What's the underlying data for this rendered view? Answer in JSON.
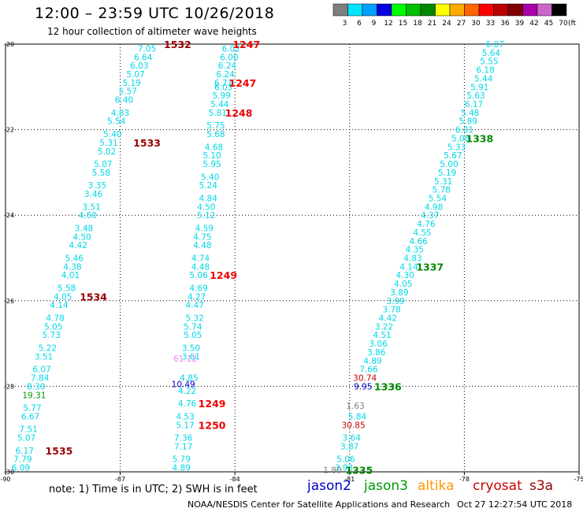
{
  "header": {
    "title": "12:00 – 23:59 UTC 10/26/2018",
    "subtitle": "12 hour collection of altimeter wave heights"
  },
  "colorbar": {
    "colors": [
      "#7f7f7f",
      "#00e5ff",
      "#00a0ff",
      "#0000e0",
      "#00ff00",
      "#00c000",
      "#008800",
      "#ffff00",
      "#ffaa00",
      "#ff6600",
      "#ff0000",
      "#bb0000",
      "#800000",
      "#aa00aa",
      "#cc66cc",
      "#000000"
    ],
    "labels": [
      "3",
      "6",
      "9",
      "12",
      "15",
      "18",
      "21",
      "24",
      "27",
      "30",
      "33",
      "36",
      "39",
      "42",
      "45",
      "70"
    ],
    "unit": "(ft)"
  },
  "map": {
    "lat_ticks": [
      "-20",
      "-22",
      "-24",
      "-26",
      "-28",
      "-30"
    ],
    "lon_ticks": [
      "-90",
      "-87",
      "-84",
      "-81",
      "-78",
      "-75"
    ],
    "tracks": [
      {
        "name": "track-west",
        "color": "#00d8e8",
        "values": [
          {
            "lat": -20.1,
            "lon": -86.3,
            "v": "7.05"
          },
          {
            "lat": -20.3,
            "lon": -86.4,
            "v": "6.64"
          },
          {
            "lat": -20.5,
            "lon": -86.5,
            "v": "6.03"
          },
          {
            "lat": -20.7,
            "lon": -86.6,
            "v": "5.07"
          },
          {
            "lat": -20.9,
            "lon": -86.7,
            "v": "5.19"
          },
          {
            "lat": -21.1,
            "lon": -86.8,
            "v": "5.57"
          },
          {
            "lat": -21.3,
            "lon": -86.9,
            "v": "6.40"
          },
          {
            "lat": -21.6,
            "lon": -87.0,
            "v": "4.83"
          },
          {
            "lat": -21.8,
            "lon": -87.1,
            "v": "5.54"
          },
          {
            "lat": -22.1,
            "lon": -87.2,
            "v": "5.40"
          },
          {
            "lat": -22.3,
            "lon": -87.3,
            "v": "5.31"
          },
          {
            "lat": -22.5,
            "lon": -87.35,
            "v": "5.02"
          },
          {
            "lat": -22.8,
            "lon": -87.45,
            "v": "5.07"
          },
          {
            "lat": -23.0,
            "lon": -87.5,
            "v": "5.58"
          },
          {
            "lat": -23.3,
            "lon": -87.6,
            "v": "3.35"
          },
          {
            "lat": -23.5,
            "lon": -87.7,
            "v": "3.46"
          },
          {
            "lat": -23.8,
            "lon": -87.75,
            "v": "3.51"
          },
          {
            "lat": -24.0,
            "lon": -87.85,
            "v": "4.60"
          },
          {
            "lat": -24.3,
            "lon": -87.95,
            "v": "3.48"
          },
          {
            "lat": -24.5,
            "lon": -88.0,
            "v": "4.50"
          },
          {
            "lat": -24.7,
            "lon": -88.1,
            "v": "4.42"
          },
          {
            "lat": -25.0,
            "lon": -88.2,
            "v": "5.46"
          },
          {
            "lat": -25.2,
            "lon": -88.25,
            "v": "4.38"
          },
          {
            "lat": -25.4,
            "lon": -88.3,
            "v": "4.01"
          },
          {
            "lat": -25.7,
            "lon": -88.4,
            "v": "5.58"
          },
          {
            "lat": -25.9,
            "lon": -88.5,
            "v": "4.05"
          },
          {
            "lat": -26.1,
            "lon": -88.6,
            "v": "4.14"
          },
          {
            "lat": -26.4,
            "lon": -88.7,
            "v": "4.78"
          },
          {
            "lat": -26.6,
            "lon": -88.75,
            "v": "5.05"
          },
          {
            "lat": -26.8,
            "lon": -88.8,
            "v": "5.73"
          },
          {
            "lat": -27.1,
            "lon": -88.9,
            "v": "5.22"
          },
          {
            "lat": -27.3,
            "lon": -89.0,
            "v": "3.51"
          },
          {
            "lat": -27.6,
            "lon": -89.05,
            "v": "6.07"
          },
          {
            "lat": -27.8,
            "lon": -89.1,
            "v": "7.84"
          },
          {
            "lat": -28.0,
            "lon": -89.2,
            "v": "8.30"
          }
        ]
      },
      {
        "name": "track-west-south",
        "color": "#00d8e8",
        "values": [
          {
            "lat": -28.5,
            "lon": -89.3,
            "v": "5.77"
          },
          {
            "lat": -28.7,
            "lon": -89.35,
            "v": "6.67"
          },
          {
            "lat": -29.0,
            "lon": -89.4,
            "v": "7.51"
          },
          {
            "lat": -29.2,
            "lon": -89.45,
            "v": "5.07"
          },
          {
            "lat": -29.5,
            "lon": -89.5,
            "v": "6.17"
          },
          {
            "lat": -29.7,
            "lon": -89.55,
            "v": "7.79"
          },
          {
            "lat": -29.9,
            "lon": -89.6,
            "v": "6.09"
          }
        ]
      },
      {
        "name": "track-middle",
        "color": "#00d8e8",
        "values": [
          {
            "lat": -20.1,
            "lon": -84.1,
            "v": "6.02"
          },
          {
            "lat": -20.3,
            "lon": -84.15,
            "v": "6.00"
          },
          {
            "lat": -20.5,
            "lon": -84.2,
            "v": "6.24"
          },
          {
            "lat": -20.7,
            "lon": -84.25,
            "v": "6.24"
          },
          {
            "lat": -20.9,
            "lon": -84.3,
            "v": "6.71"
          },
          {
            "lat": -21.0,
            "lon": -84.3,
            "v": "6.03"
          },
          {
            "lat": -21.2,
            "lon": -84.35,
            "v": "5.99"
          },
          {
            "lat": -21.4,
            "lon": -84.4,
            "v": "5.44"
          },
          {
            "lat": -21.6,
            "lon": -84.45,
            "v": "5.81"
          },
          {
            "lat": -21.9,
            "lon": -84.5,
            "v": "5.75"
          },
          {
            "lat": -22.1,
            "lon": -84.5,
            "v": "5.68"
          },
          {
            "lat": -22.4,
            "lon": -84.55,
            "v": "4.68"
          },
          {
            "lat": -22.6,
            "lon": -84.6,
            "v": "5.10"
          },
          {
            "lat": -22.8,
            "lon": -84.6,
            "v": "5.95"
          },
          {
            "lat": -23.1,
            "lon": -84.65,
            "v": "5.40"
          },
          {
            "lat": -23.3,
            "lon": -84.7,
            "v": "5.24"
          },
          {
            "lat": -23.6,
            "lon": -84.7,
            "v": "4.84"
          },
          {
            "lat": -23.8,
            "lon": -84.75,
            "v": "4.50"
          },
          {
            "lat": -24.0,
            "lon": -84.75,
            "v": "5.12"
          },
          {
            "lat": -24.3,
            "lon": -84.8,
            "v": "4.59"
          },
          {
            "lat": -24.5,
            "lon": -84.85,
            "v": "4.75"
          },
          {
            "lat": -24.7,
            "lon": -84.85,
            "v": "4.48"
          },
          {
            "lat": -25.0,
            "lon": -84.9,
            "v": "4.74"
          },
          {
            "lat": -25.2,
            "lon": -84.9,
            "v": "4.48"
          },
          {
            "lat": -25.4,
            "lon": -84.95,
            "v": "5.06"
          },
          {
            "lat": -25.7,
            "lon": -84.95,
            "v": "4.69"
          },
          {
            "lat": -25.9,
            "lon": -85.0,
            "v": "4.27"
          },
          {
            "lat": -26.1,
            "lon": -85.05,
            "v": "4.47"
          },
          {
            "lat": -26.4,
            "lon": -85.05,
            "v": "5.32"
          },
          {
            "lat": -26.6,
            "lon": -85.1,
            "v": "5.74"
          },
          {
            "lat": -26.8,
            "lon": -85.1,
            "v": "5.05"
          },
          {
            "lat": -27.1,
            "lon": -85.15,
            "v": "3.50"
          },
          {
            "lat": -27.3,
            "lon": -85.15,
            "v": "3.61"
          },
          {
            "lat": -27.8,
            "lon": -85.2,
            "v": "4.85"
          },
          {
            "lat": -28.1,
            "lon": -85.25,
            "v": "4.22"
          },
          {
            "lat": -28.4,
            "lon": -85.25,
            "v": "4.76"
          },
          {
            "lat": -28.7,
            "lon": -85.3,
            "v": "4.53"
          },
          {
            "lat": -28.9,
            "lon": -85.3,
            "v": "5.17"
          },
          {
            "lat": -29.2,
            "lon": -85.35,
            "v": "7.36"
          },
          {
            "lat": -29.4,
            "lon": -85.35,
            "v": "7.17"
          },
          {
            "lat": -29.7,
            "lon": -85.4,
            "v": "5.79"
          },
          {
            "lat": -29.9,
            "lon": -85.4,
            "v": "4.89"
          }
        ]
      },
      {
        "name": "track-east",
        "color": "#00d8e8",
        "values": [
          {
            "lat": -20.0,
            "lon": -77.2,
            "v": "6.07"
          },
          {
            "lat": -20.2,
            "lon": -77.3,
            "v": "5.64"
          },
          {
            "lat": -20.4,
            "lon": -77.35,
            "v": "5.55"
          },
          {
            "lat": -20.6,
            "lon": -77.45,
            "v": "6.18"
          },
          {
            "lat": -20.8,
            "lon": -77.5,
            "v": "5.44"
          },
          {
            "lat": -21.0,
            "lon": -77.6,
            "v": "5.91"
          },
          {
            "lat": -21.2,
            "lon": -77.7,
            "v": "5.63"
          },
          {
            "lat": -21.4,
            "lon": -77.75,
            "v": "6.17"
          },
          {
            "lat": -21.6,
            "lon": -77.85,
            "v": "5.48"
          },
          {
            "lat": -21.8,
            "lon": -77.9,
            "v": "5.89"
          },
          {
            "lat": -22.0,
            "lon": -78.0,
            "v": "6.01"
          },
          {
            "lat": -22.2,
            "lon": -78.1,
            "v": "5.08"
          },
          {
            "lat": -22.4,
            "lon": -78.2,
            "v": "5.33"
          },
          {
            "lat": -22.6,
            "lon": -78.3,
            "v": "5.67"
          },
          {
            "lat": -22.8,
            "lon": -78.4,
            "v": "5.00"
          },
          {
            "lat": -23.0,
            "lon": -78.45,
            "v": "5.19"
          },
          {
            "lat": -23.2,
            "lon": -78.55,
            "v": "5.31"
          },
          {
            "lat": -23.4,
            "lon": -78.6,
            "v": "5.78"
          },
          {
            "lat": -23.6,
            "lon": -78.7,
            "v": "5.54"
          },
          {
            "lat": -23.8,
            "lon": -78.8,
            "v": "4.98"
          },
          {
            "lat": -24.0,
            "lon": -78.9,
            "v": "4.37"
          },
          {
            "lat": -24.2,
            "lon": -79.0,
            "v": "4.76"
          },
          {
            "lat": -24.4,
            "lon": -79.1,
            "v": "4.55"
          },
          {
            "lat": -24.6,
            "lon": -79.2,
            "v": "4.66"
          },
          {
            "lat": -24.8,
            "lon": -79.3,
            "v": "4.35"
          },
          {
            "lat": -25.0,
            "lon": -79.35,
            "v": "4.83"
          },
          {
            "lat": -25.2,
            "lon": -79.45,
            "v": "4.14"
          },
          {
            "lat": -25.4,
            "lon": -79.55,
            "v": "4.30"
          },
          {
            "lat": -25.6,
            "lon": -79.6,
            "v": "4.05"
          },
          {
            "lat": -25.8,
            "lon": -79.7,
            "v": "3.89"
          },
          {
            "lat": -26.0,
            "lon": -79.8,
            "v": "3.99"
          },
          {
            "lat": -26.2,
            "lon": -79.9,
            "v": "3.78"
          },
          {
            "lat": -26.4,
            "lon": -80.0,
            "v": "4.42"
          },
          {
            "lat": -26.6,
            "lon": -80.1,
            "v": "3.22"
          },
          {
            "lat": -26.8,
            "lon": -80.15,
            "v": "4.51"
          },
          {
            "lat": -27.0,
            "lon": -80.25,
            "v": "3.06"
          },
          {
            "lat": -27.2,
            "lon": -80.3,
            "v": "3.86"
          },
          {
            "lat": -27.4,
            "lon": -80.4,
            "v": "4.89"
          },
          {
            "lat": -27.6,
            "lon": -80.5,
            "v": "7.66"
          }
        ]
      },
      {
        "name": "track-east-south",
        "color": "#00d8e8",
        "values": [
          {
            "lat": -28.7,
            "lon": -80.8,
            "v": "5.84"
          },
          {
            "lat": -29.2,
            "lon": -80.95,
            "v": "3.64"
          },
          {
            "lat": -29.4,
            "lon": -81.0,
            "v": "3.87"
          },
          {
            "lat": -29.7,
            "lon": -81.1,
            "v": "5.06"
          },
          {
            "lat": -29.9,
            "lon": -81.15,
            "v": "3.93"
          }
        ]
      }
    ],
    "special_values": [
      {
        "lat": -27.35,
        "lon": -85.3,
        "v": "61.12",
        "color": "#ee88ee"
      },
      {
        "lat": -27.95,
        "lon": -85.35,
        "v": "10.49",
        "color": "#0000cc"
      },
      {
        "lat": -27.8,
        "lon": -80.6,
        "v": "30.74",
        "color": "#cc0000"
      },
      {
        "lat": -28.0,
        "lon": -80.65,
        "v": "9.95",
        "color": "#0000cc"
      },
      {
        "lat": -28.9,
        "lon": -80.9,
        "v": "30.85",
        "color": "#cc0000"
      },
      {
        "lat": -28.45,
        "lon": -80.85,
        "v": "1.63",
        "color": "#7f7f7f"
      },
      {
        "lat": -29.95,
        "lon": -81.45,
        "v": "1.80",
        "color": "#7f7f7f"
      },
      {
        "lat": -28.2,
        "lon": -89.25,
        "v": "19.31",
        "color": "#009900"
      }
    ],
    "time_labels": [
      {
        "lat": -20.0,
        "lon": -85.5,
        "t": "1532",
        "color": "#990000"
      },
      {
        "lat": -20.0,
        "lon": -83.7,
        "t": "1247",
        "color": "#ee0000"
      },
      {
        "lat": -20.9,
        "lon": -83.8,
        "t": "1247",
        "color": "#ee0000"
      },
      {
        "lat": -21.6,
        "lon": -83.9,
        "t": "1248",
        "color": "#ee0000"
      },
      {
        "lat": -22.3,
        "lon": -86.3,
        "t": "1533",
        "color": "#990000"
      },
      {
        "lat": -22.2,
        "lon": -77.6,
        "t": "1338",
        "color": "#008800"
      },
      {
        "lat": -25.2,
        "lon": -78.9,
        "t": "1337",
        "color": "#008800"
      },
      {
        "lat": -25.4,
        "lon": -84.3,
        "t": "1249",
        "color": "#ee0000"
      },
      {
        "lat": -25.9,
        "lon": -87.7,
        "t": "1534",
        "color": "#990000"
      },
      {
        "lat": -28.0,
        "lon": -80.0,
        "t": "1336",
        "color": "#008800"
      },
      {
        "lat": -28.4,
        "lon": -84.6,
        "t": "1249",
        "color": "#ee0000"
      },
      {
        "lat": -28.9,
        "lon": -84.6,
        "t": "1250",
        "color": "#ee0000"
      },
      {
        "lat": -29.5,
        "lon": -88.6,
        "t": "1535",
        "color": "#990000"
      },
      {
        "lat": -29.95,
        "lon": -80.75,
        "t": "1335",
        "color": "#008800"
      }
    ]
  },
  "legend": {
    "note": "note:  1) Time is in UTC;  2) SWH is in feet",
    "satellites": [
      {
        "name": "jason2",
        "color": "#0000cc"
      },
      {
        "name": "jason3",
        "color": "#009900"
      },
      {
        "name": "altika",
        "color": "#ff9900"
      },
      {
        "name": "cryosat",
        "color": "#cc0000"
      },
      {
        "name": "s3a",
        "color": "#990000"
      }
    ]
  },
  "footer": {
    "credit": "NOAA/NESDIS Center for Satellite Applications and Research",
    "timestamp": "Oct 27 12:27:54 UTC 2018"
  }
}
